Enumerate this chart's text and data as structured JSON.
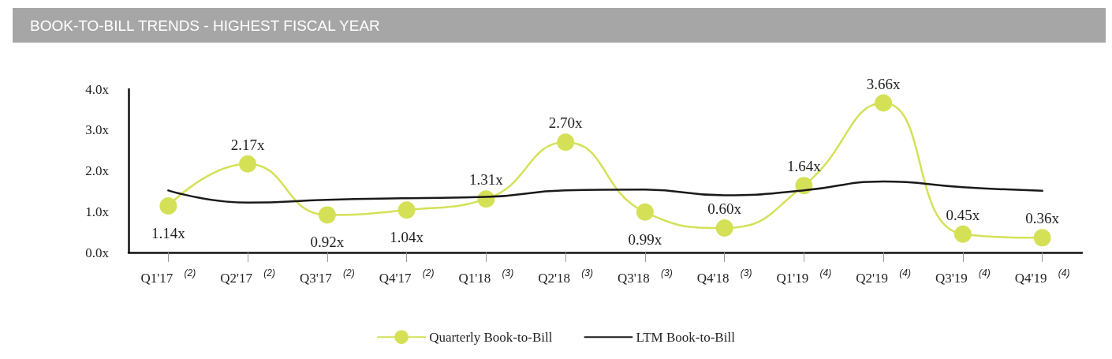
{
  "chart_data": {
    "type": "line",
    "title": "BOOK-TO-BILL TRENDS - HIGHEST FISCAL YEAR",
    "categories": [
      "Q1'17 $^{(2)}$",
      "Q2'17 $^{(2)}$",
      "Q3'17 $^{(2)}$",
      "Q4'17 $^{(2)}$",
      "Q1'18 $^{(3)}$",
      "Q2'18 $^{(3)}$",
      "Q3'18 $^{(3)}$",
      "Q4'18 $^{(3)}$",
      "Q1'19 $^{(4)}$",
      "Q2'19 $^{(4)}$",
      "Q3'19 $^{(4)}$",
      "Q4'19 $^{(4)}$"
    ],
    "series": [
      {
        "name": "Quarterly Book-to-Bill",
        "color": "#d4e157",
        "marker": "circle",
        "values": [
          1.14,
          2.17,
          0.92,
          1.04,
          1.31,
          2.7,
          0.99,
          0.6,
          1.64,
          3.66,
          0.45,
          0.36
        ],
        "value_labels": [
          "1.14x",
          "2.17x",
          "0.92x",
          "1.04x",
          "1.31x",
          "2.70x",
          "0.99x",
          "0.60x",
          "1.64x",
          "3.66x",
          "0.45x",
          "0.36x"
        ]
      },
      {
        "name": "LTM Book-to-Bill",
        "color": "#1a1a1a",
        "marker": "none",
        "values": [
          1.52,
          1.22,
          1.29,
          1.33,
          1.36,
          1.52,
          1.54,
          1.4,
          1.52,
          1.74,
          1.6,
          1.51
        ]
      }
    ],
    "ylim": [
      0,
      4
    ],
    "yticks": [
      {
        "value": 0,
        "label": "0.0x"
      },
      {
        "value": 1,
        "label": "1.0x"
      },
      {
        "value": 2,
        "label": "2.0x"
      },
      {
        "value": 3,
        "label": "3.0x"
      },
      {
        "value": 4,
        "label": "4.0x"
      }
    ],
    "grid": false,
    "legend": "bottom",
    "line_style": "solid"
  }
}
